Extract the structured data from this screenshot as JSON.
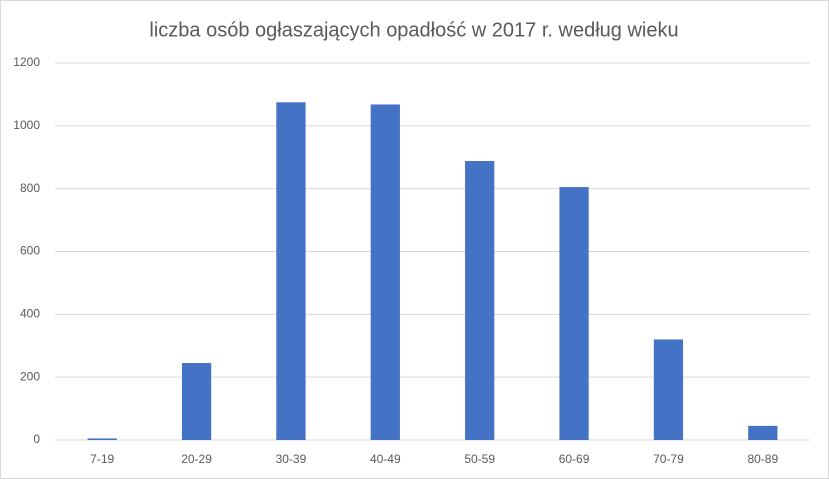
{
  "chart_data": {
    "type": "bar",
    "title": "liczba osób ogłaszających opadłość w 2017 r. według wieku",
    "categories": [
      "7-19",
      "20-29",
      "30-39",
      "40-49",
      "50-59",
      "60-69",
      "70-79",
      "80-89"
    ],
    "values": [
      5,
      245,
      1075,
      1068,
      888,
      805,
      320,
      45
    ],
    "color": "#4472c4",
    "ylim": [
      0,
      1200
    ],
    "yticks": [
      0,
      200,
      400,
      600,
      800,
      1000,
      1200
    ],
    "grid": true
  }
}
